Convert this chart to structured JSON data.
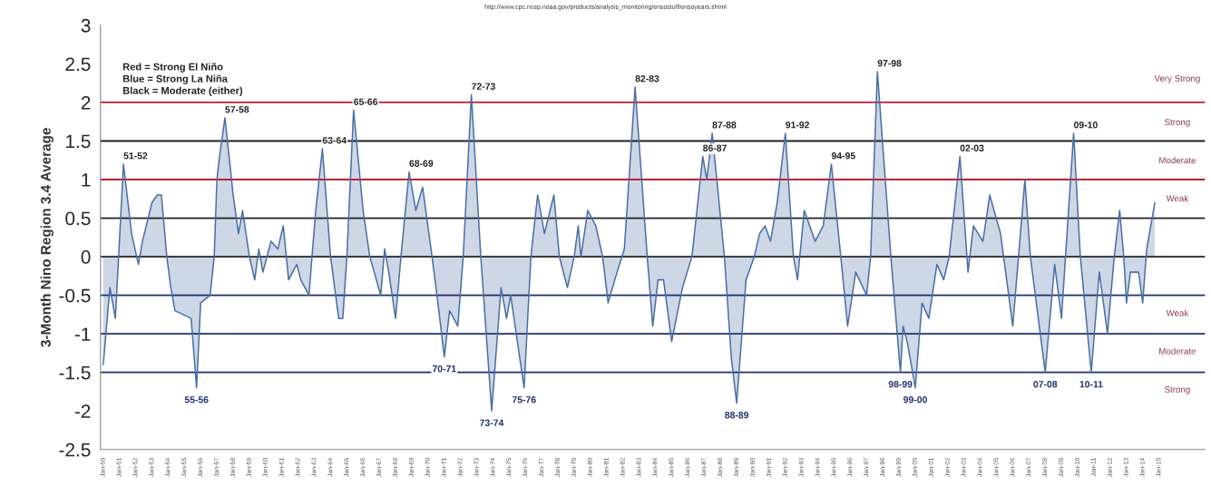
{
  "chart_data": {
    "type": "area",
    "ylabel": "3-Month Nino Region 3.4 Average",
    "annotations": [
      "http://www.cpc.ncep.noaa.gov/products/analysis_monitoring/ensostuff/ensoyears.shtml",
      "Red = Strong El Niño",
      "Blue = Strong La Niña",
      "Black = Moderate (either)",
      {
        "text": "51-52",
        "x": "1951-04",
        "y": 1.2
      },
      {
        "text": "57-58",
        "x": "1957-07",
        "y": 1.8
      },
      {
        "text": "63-64",
        "x": "1963-07",
        "y": 1.4
      },
      {
        "text": "65-66",
        "x": "1965-06",
        "y": 1.9
      },
      {
        "text": "68-69",
        "x": "1968-11",
        "y": 1.1
      },
      {
        "text": "72-73",
        "x": "1972-09",
        "y": 2.1
      },
      {
        "text": "82-83",
        "x": "1982-10",
        "y": 2.2
      },
      {
        "text": "86-87",
        "x": "1986-12",
        "y": 1.3
      },
      {
        "text": "87-88",
        "x": "1987-07",
        "y": 1.6
      },
      {
        "text": "91-92",
        "x": "1992-01",
        "y": 1.6
      },
      {
        "text": "94-95",
        "x": "1994-11",
        "y": 1.2
      },
      {
        "text": "97-98",
        "x": "1997-09",
        "y": 2.4
      },
      {
        "text": "02-03",
        "x": "2002-10",
        "y": 1.3
      },
      {
        "text": "09-10",
        "x": "2009-10",
        "y": 1.6
      },
      {
        "text": "55-56",
        "x": "1955-10",
        "y": -1.7
      },
      {
        "text": "70-71",
        "x": "1971-01",
        "y": -1.3
      },
      {
        "text": "73-74",
        "x": "1973-12",
        "y": -2.0
      },
      {
        "text": "75-76",
        "x": "1975-12",
        "y": -1.7
      },
      {
        "text": "88-89",
        "x": "1989-01",
        "y": -1.9
      },
      {
        "text": "98-99",
        "x": "1999-02",
        "y": -1.5
      },
      {
        "text": "99-00",
        "x": "2000-01",
        "y": -1.7
      },
      {
        "text": "07-08",
        "x": "2008-01",
        "y": -1.5
      },
      {
        "text": "10-11",
        "x": "2010-11",
        "y": -1.5
      },
      "Very Strong",
      "Strong",
      "Moderate",
      "Weak",
      "Weak",
      "Moderate",
      "Strong"
    ],
    "x": [
      "1950-01",
      "1950-06",
      "1950-10",
      "1951-04",
      "1951-10",
      "1952-03",
      "1952-06",
      "1953-01",
      "1953-05",
      "1953-08",
      "1953-12",
      "1954-03",
      "1954-06",
      "1955-06",
      "1955-10",
      "1956-01",
      "1956-08",
      "1956-11",
      "1957-01",
      "1957-03",
      "1957-07",
      "1958-01",
      "1958-05",
      "1958-08",
      "1959-01",
      "1959-05",
      "1959-08",
      "1959-11",
      "1960-05",
      "1960-10",
      "1961-02",
      "1961-06",
      "1961-12",
      "1962-03",
      "1962-09",
      "1963-02",
      "1963-07",
      "1964-01",
      "1964-07",
      "1964-10",
      "1965-01",
      "1965-06",
      "1966-01",
      "1966-06",
      "1967-02",
      "1967-05",
      "1967-08",
      "1968-01",
      "1968-05",
      "1968-11",
      "1969-04",
      "1969-09",
      "1970-04",
      "1970-09",
      "1971-01",
      "1971-05",
      "1971-11",
      "1972-03",
      "1972-09",
      "1973-04",
      "1973-12",
      "1974-07",
      "1974-11",
      "1975-02",
      "1975-12",
      "1976-05",
      "1976-10",
      "1977-03",
      "1977-10",
      "1978-02",
      "1978-08",
      "1979-01",
      "1979-04",
      "1979-06",
      "1979-11",
      "1980-05",
      "1980-10",
      "1981-02",
      "1981-07",
      "1982-02",
      "1982-10",
      "1983-07",
      "1983-11",
      "1984-03",
      "1984-07",
      "1985-01",
      "1985-09",
      "1986-04",
      "1986-12",
      "1987-03",
      "1987-07",
      "1988-04",
      "1988-09",
      "1989-01",
      "1989-08",
      "1990-02",
      "1990-06",
      "1990-10",
      "1991-02",
      "1991-07",
      "1992-01",
      "1992-07",
      "1992-10",
      "1993-03",
      "1993-11",
      "1994-05",
      "1994-11",
      "1995-06",
      "1995-11",
      "1996-05",
      "1997-01",
      "1997-04",
      "1997-09",
      "1998-07",
      "1999-02",
      "1999-04",
      "1999-07",
      "2000-01",
      "2000-06",
      "2000-11",
      "2001-05",
      "2001-10",
      "2002-02",
      "2002-10",
      "2003-04",
      "2003-08",
      "2004-03",
      "2004-08",
      "2005-04",
      "2006-01",
      "2006-10",
      "2007-02",
      "2008-01",
      "2008-08",
      "2009-01",
      "2009-04",
      "2009-10",
      "2010-03",
      "2010-11",
      "2011-05",
      "2011-11",
      "2012-04",
      "2012-08",
      "2012-11",
      "2013-01",
      "2013-04",
      "2013-10",
      "2014-01",
      "2014-04",
      "2014-10"
    ],
    "series": [
      {
        "color": "#4a6fa5",
        "values": [
          -1.4,
          -0.4,
          -0.8,
          1.2,
          0.3,
          -0.1,
          0.2,
          0.7,
          0.8,
          0.8,
          0,
          -0.4,
          -0.7,
          -0.8,
          -1.7,
          -0.6,
          -0.5,
          0,
          1.0,
          1.3,
          1.8,
          0.8,
          0.3,
          0.6,
          0,
          -0.3,
          0.1,
          -0.2,
          0.2,
          0.1,
          0.4,
          -0.3,
          -0.1,
          -0.3,
          -0.5,
          0.6,
          1.4,
          0,
          -0.8,
          -0.8,
          0,
          1.9,
          0.6,
          0,
          -0.5,
          0.1,
          -0.2,
          -0.8,
          0,
          1.1,
          0.6,
          0.9,
          0,
          -0.7,
          -1.3,
          -0.7,
          -0.9,
          0,
          2.1,
          0,
          -2.0,
          -0.4,
          -0.8,
          -0.5,
          -1.7,
          0,
          0.8,
          0.3,
          0.8,
          0,
          -0.4,
          0,
          0.4,
          0,
          0.6,
          0.4,
          0,
          -0.6,
          -0.3,
          0.1,
          2.2,
          0,
          -0.9,
          -0.3,
          -0.3,
          -1.1,
          -0.4,
          0,
          1.3,
          1.0,
          1.6,
          0,
          -1.3,
          -1.9,
          -0.3,
          0,
          0.3,
          0.4,
          0.2,
          0.7,
          1.6,
          0,
          -0.3,
          0.6,
          0.2,
          0.4,
          1.2,
          0,
          -0.9,
          -0.2,
          -0.5,
          0,
          2.4,
          0,
          -1.5,
          -0.9,
          -1.1,
          -1.7,
          -0.6,
          -0.8,
          -0.1,
          -0.3,
          0,
          1.3,
          -0.2,
          0.4,
          0.2,
          0.8,
          0.3,
          -0.9,
          1.0,
          0,
          -1.5,
          -0.1,
          -0.8,
          0,
          1.6,
          0,
          -1.5,
          -0.2,
          -1.0,
          0,
          0.6,
          0,
          -0.6,
          -0.2,
          -0.2,
          -0.6,
          0.1,
          0.7
        ]
      }
    ],
    "xlim": [
      "1949-11",
      "2017-11"
    ],
    "xticks": [
      {
        "value": "1950-01",
        "label": "Jan-50"
      },
      {
        "value": "1951-01",
        "label": "Jan-51"
      },
      {
        "value": "1952-01",
        "label": "Jan-52"
      },
      {
        "value": "1953-01",
        "label": "Jan-53"
      },
      {
        "value": "1954-01",
        "label": "Jan-54"
      },
      {
        "value": "1955-01",
        "label": "Jan-55"
      },
      {
        "value": "1956-01",
        "label": "Jan-56"
      },
      {
        "value": "1957-01",
        "label": "Jan-57"
      },
      {
        "value": "1958-01",
        "label": "Jan-58"
      },
      {
        "value": "1959-01",
        "label": "Jan-59"
      },
      {
        "value": "1960-01",
        "label": "Jan-60"
      },
      {
        "value": "1961-01",
        "label": "Jan-61"
      },
      {
        "value": "1962-01",
        "label": "Jan-62"
      },
      {
        "value": "1963-01",
        "label": "Jan-63"
      },
      {
        "value": "1964-01",
        "label": "Jan-64"
      },
      {
        "value": "1965-01",
        "label": "Jan-65"
      },
      {
        "value": "1966-01",
        "label": "Jan-66"
      },
      {
        "value": "1967-01",
        "label": "Jan-67"
      },
      {
        "value": "1968-01",
        "label": "Jan-68"
      },
      {
        "value": "1969-01",
        "label": "Jan-69"
      },
      {
        "value": "1970-01",
        "label": "Jan-70"
      },
      {
        "value": "1971-01",
        "label": "Jan-71"
      },
      {
        "value": "1972-01",
        "label": "Jan-72"
      },
      {
        "value": "1973-01",
        "label": "Jan-73"
      },
      {
        "value": "1974-01",
        "label": "Jan-74"
      },
      {
        "value": "1975-01",
        "label": "Jan-75"
      },
      {
        "value": "1976-01",
        "label": "Jan-76"
      },
      {
        "value": "1977-01",
        "label": "Jan-77"
      },
      {
        "value": "1978-01",
        "label": "Jan-78"
      },
      {
        "value": "1979-01",
        "label": "Jan-79"
      },
      {
        "value": "1980-01",
        "label": "Jan-80"
      },
      {
        "value": "1981-01",
        "label": "Jan-81"
      },
      {
        "value": "1982-01",
        "label": "Jan-82"
      },
      {
        "value": "1983-01",
        "label": "Jan-83"
      },
      {
        "value": "1984-01",
        "label": "Jan-84"
      },
      {
        "value": "1985-01",
        "label": "Jan-85"
      },
      {
        "value": "1986-01",
        "label": "Jan-86"
      },
      {
        "value": "1987-01",
        "label": "Jan-87"
      },
      {
        "value": "1988-01",
        "label": "Jan-88"
      },
      {
        "value": "1989-01",
        "label": "Jan-89"
      },
      {
        "value": "1990-01",
        "label": "Jan-90"
      },
      {
        "value": "1991-01",
        "label": "Jan-91"
      },
      {
        "value": "1992-01",
        "label": "Jan-92"
      },
      {
        "value": "1993-01",
        "label": "Jan-93"
      },
      {
        "value": "1994-01",
        "label": "Jan-94"
      },
      {
        "value": "1995-01",
        "label": "Jan-95"
      },
      {
        "value": "1996-01",
        "label": "Jan-96"
      },
      {
        "value": "1997-01",
        "label": "Jan-97"
      },
      {
        "value": "1998-01",
        "label": "Jan-98"
      },
      {
        "value": "1999-01",
        "label": "Jan-99"
      },
      {
        "value": "2000-01",
        "label": "Jan-00"
      },
      {
        "value": "2001-01",
        "label": "Jan-01"
      },
      {
        "value": "2002-01",
        "label": "Jan-02"
      },
      {
        "value": "2003-01",
        "label": "Jan-03"
      },
      {
        "value": "2004-01",
        "label": "Jan-04"
      },
      {
        "value": "2005-01",
        "label": "Jan-05"
      },
      {
        "value": "2006-01",
        "label": "Jan-06"
      },
      {
        "value": "2007-01",
        "label": "Jan-07"
      },
      {
        "value": "2008-01",
        "label": "Jan-08"
      },
      {
        "value": "2009-01",
        "label": "Jan-09"
      },
      {
        "value": "2010-01",
        "label": "Jan-10"
      },
      {
        "value": "2011-01",
        "label": "Jan-11"
      },
      {
        "value": "2012-01",
        "label": "Jan-12"
      },
      {
        "value": "2013-01",
        "label": "Jan-13"
      },
      {
        "value": "2014-01",
        "label": "Jan-14"
      },
      {
        "value": "2015-01",
        "label": "Jan-15"
      }
    ],
    "ylim": [
      -2.5,
      3
    ],
    "yticks": [
      -2.5,
      -2,
      -1.5,
      -1,
      -0.5,
      0,
      0.5,
      1,
      1.5,
      2,
      2.5,
      3
    ],
    "ref_lines": [
      {
        "axis": "y",
        "value": 2,
        "color": "#c0202a"
      },
      {
        "axis": "y",
        "value": 1.5,
        "color": "#222222"
      },
      {
        "axis": "y",
        "value": 1,
        "color": "#c0202a"
      },
      {
        "axis": "y",
        "value": 0.5,
        "color": "#222222"
      },
      {
        "axis": "y",
        "value": 0,
        "color": "#222222"
      },
      {
        "axis": "y",
        "value": -0.5,
        "color": "#1f2f6e"
      },
      {
        "axis": "y",
        "value": -1,
        "color": "#1f2f6e"
      },
      {
        "axis": "y",
        "value": -1.5,
        "color": "#1f2f6e"
      }
    ],
    "grid": false,
    "legend": false,
    "marker": "none",
    "line_style": "solid"
  }
}
